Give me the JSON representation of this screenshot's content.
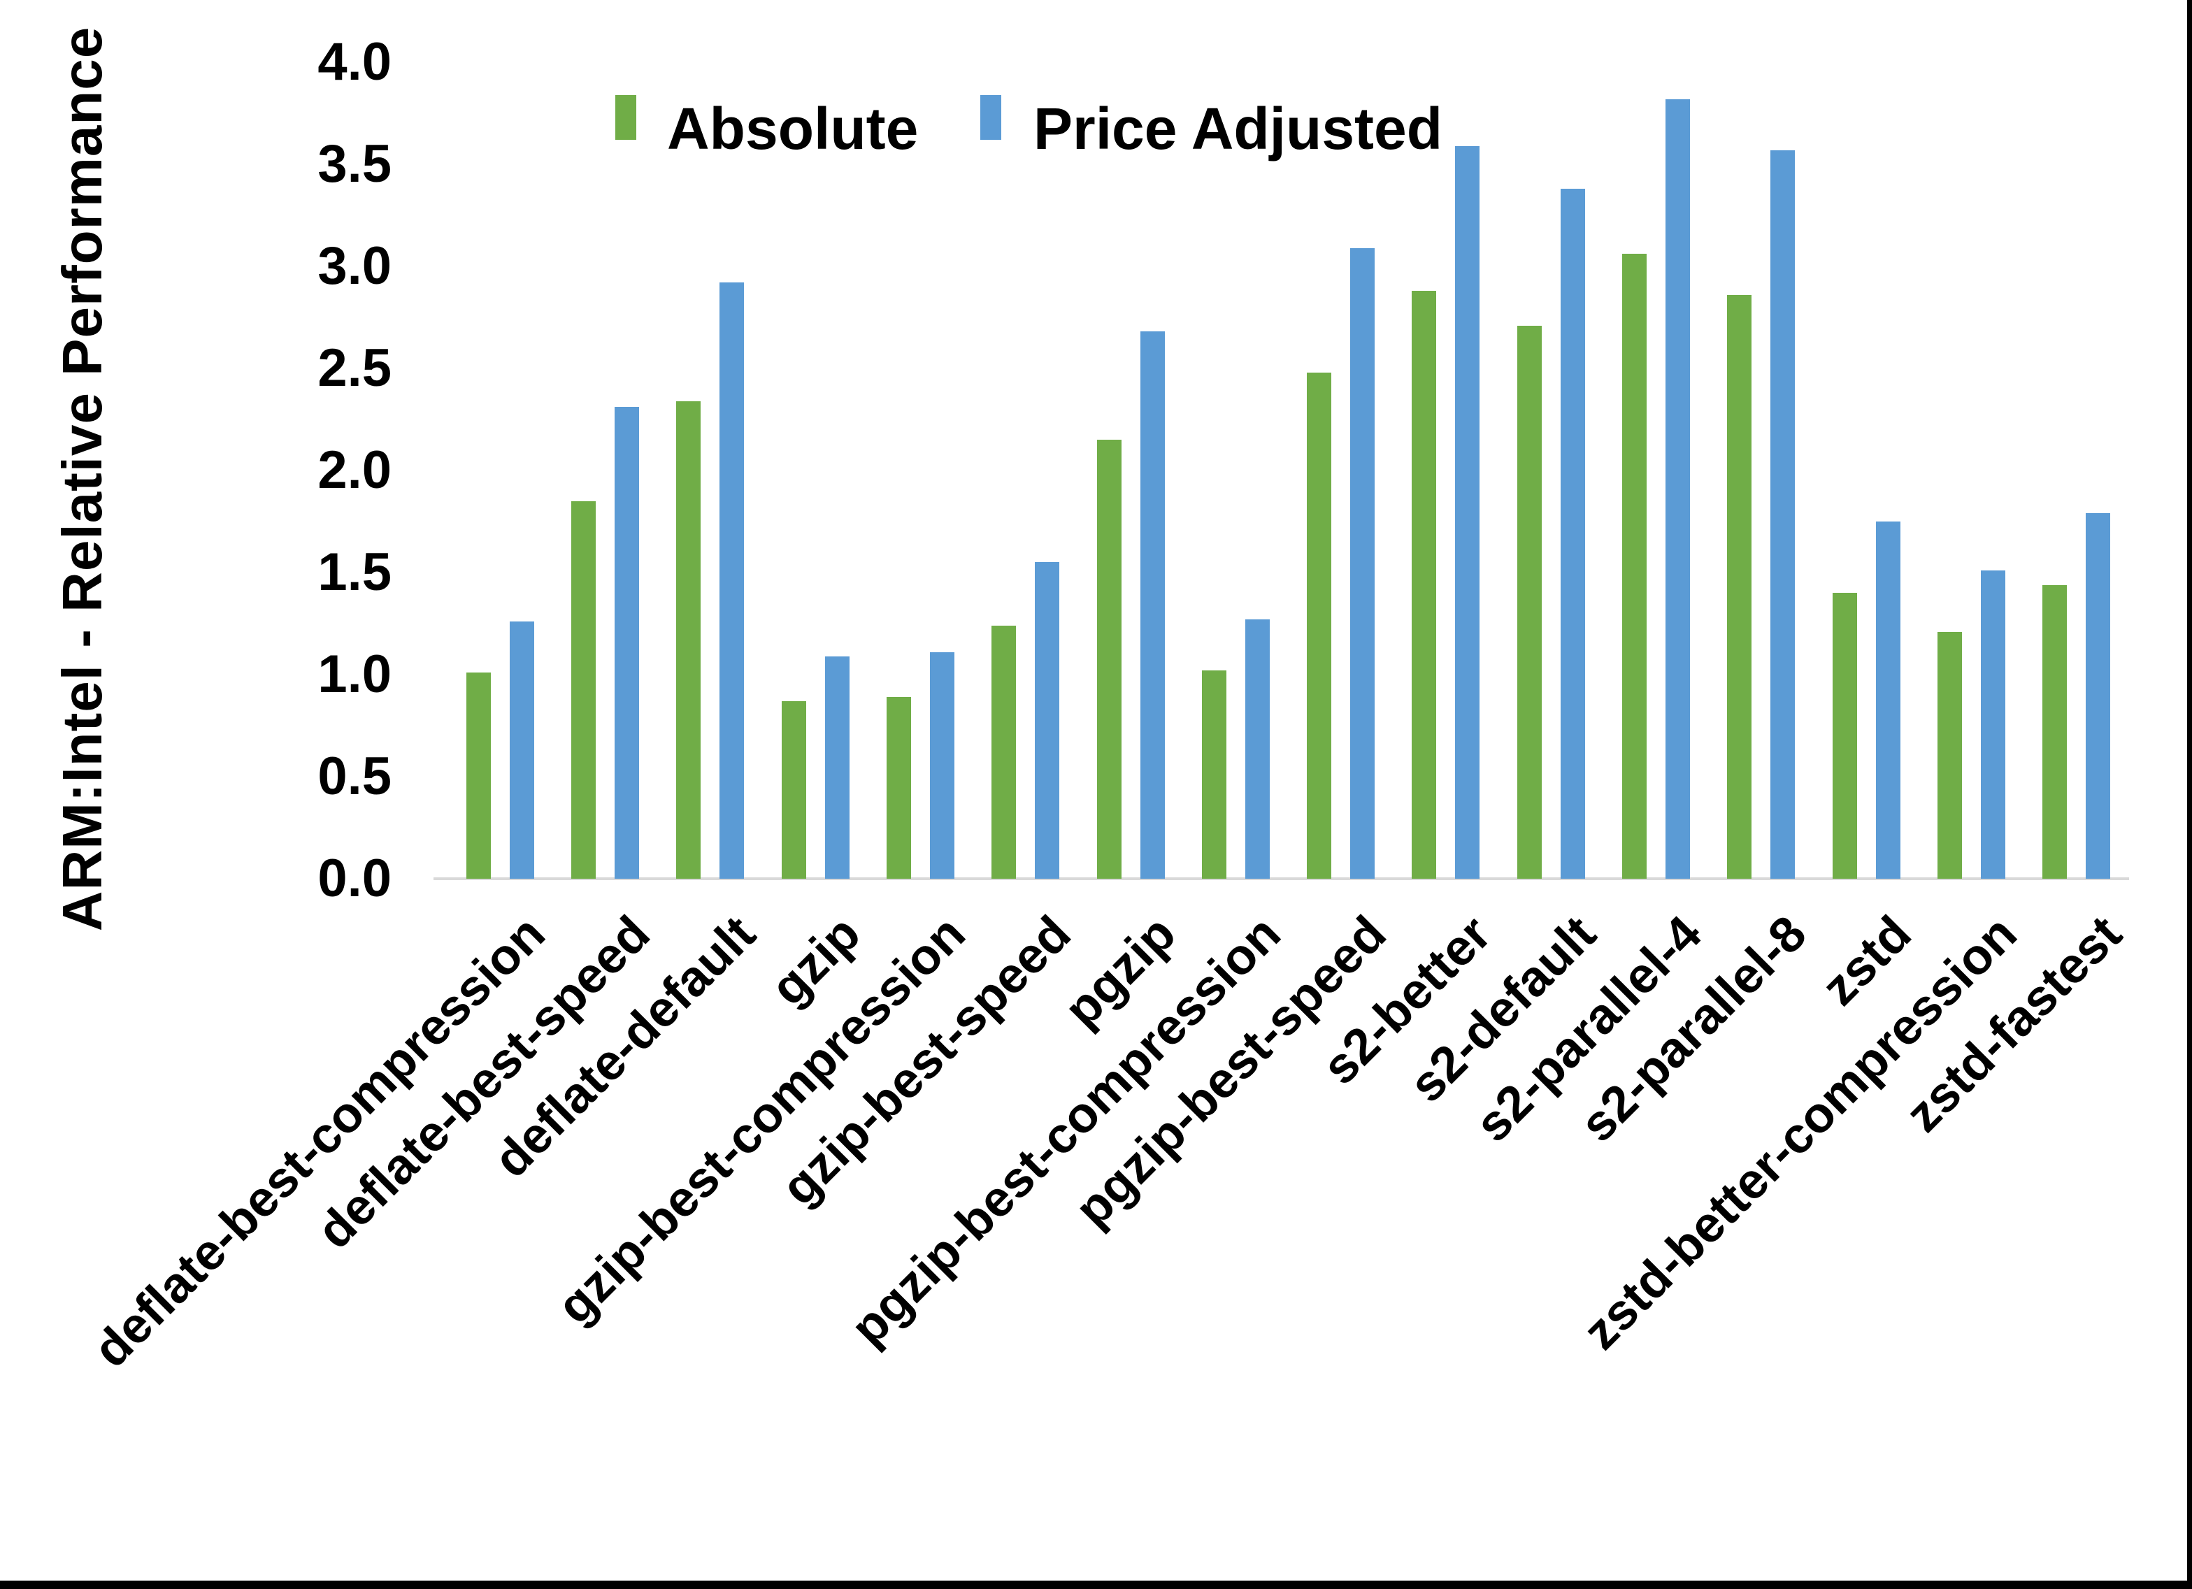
{
  "figure": {
    "background": "#ffffff",
    "axis_line_color": "#d9d9d9",
    "text_color": "#000000",
    "border_color": "#000000"
  },
  "chart_data": {
    "type": "bar",
    "title": "",
    "xlabel": "",
    "ylabel": "ARM:Intel - Relative Performance",
    "ylim": [
      0,
      4.0
    ],
    "y_tick_step": 0.5,
    "y_tick_labels": [
      "4.0",
      "3.5",
      "3.0",
      "2.5",
      "2.0",
      "1.5",
      "1.0",
      "0.5",
      "0.0"
    ],
    "grid": false,
    "legend_position": "top-center",
    "categories": [
      "deflate-best-compression",
      "deflate-best-speed",
      "deflate-default",
      "gzip",
      "gzip-best-compression",
      "gzip-best-speed",
      "pgzip",
      "pgzip-best-compression",
      "pgzip-best-speed",
      "s2-better",
      "s2-default",
      "s2-parallel-4",
      "s2-parallel-8",
      "zstd",
      "zstd-better-compression",
      "zstd-fastest"
    ],
    "series": [
      {
        "name": "Absolute",
        "color": "#70AD47",
        "values": [
          1.01,
          1.85,
          2.34,
          0.87,
          0.89,
          1.24,
          2.15,
          1.02,
          2.48,
          2.88,
          2.71,
          3.06,
          2.86,
          1.4,
          1.21,
          1.44
        ]
      },
      {
        "name": "Price Adjusted",
        "color": "#5B9BD5",
        "values": [
          1.26,
          2.31,
          2.92,
          1.09,
          1.11,
          1.55,
          2.68,
          1.27,
          3.09,
          3.59,
          3.38,
          3.82,
          3.57,
          1.75,
          1.51,
          1.79
        ]
      }
    ]
  }
}
